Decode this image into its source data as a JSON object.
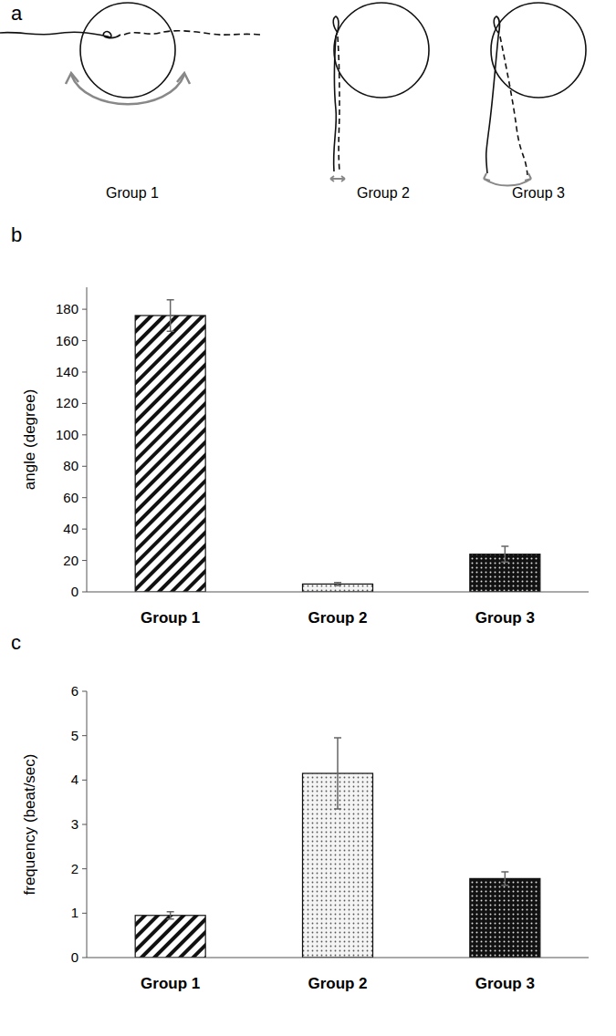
{
  "diagram": {
    "label": "a",
    "groups": [
      "Group 1",
      "Group 2",
      "Group 3"
    ]
  },
  "panel_labels": [
    "b",
    "c"
  ],
  "chart_data": [
    {
      "type": "bar",
      "y_label": "angle (degree)",
      "categories": [
        "Group 1",
        "Group 2",
        "Group 3"
      ],
      "values": [
        176,
        5,
        24
      ],
      "errors": [
        10,
        1,
        5
      ],
      "ylim": [
        0,
        194
      ],
      "yticks": [
        0,
        20,
        40,
        60,
        80,
        100,
        120,
        140,
        160,
        180
      ],
      "grid": false
    },
    {
      "type": "bar",
      "y_label": "frequency (beat/sec)",
      "categories": [
        "Group 1",
        "Group 2",
        "Group 3"
      ],
      "values": [
        0.95,
        4.15,
        1.78
      ],
      "errors": [
        0.08,
        0.8,
        0.15
      ],
      "ylim": [
        0,
        6
      ],
      "yticks": [
        0,
        1,
        2,
        3,
        4,
        5,
        6
      ],
      "grid": false
    }
  ]
}
